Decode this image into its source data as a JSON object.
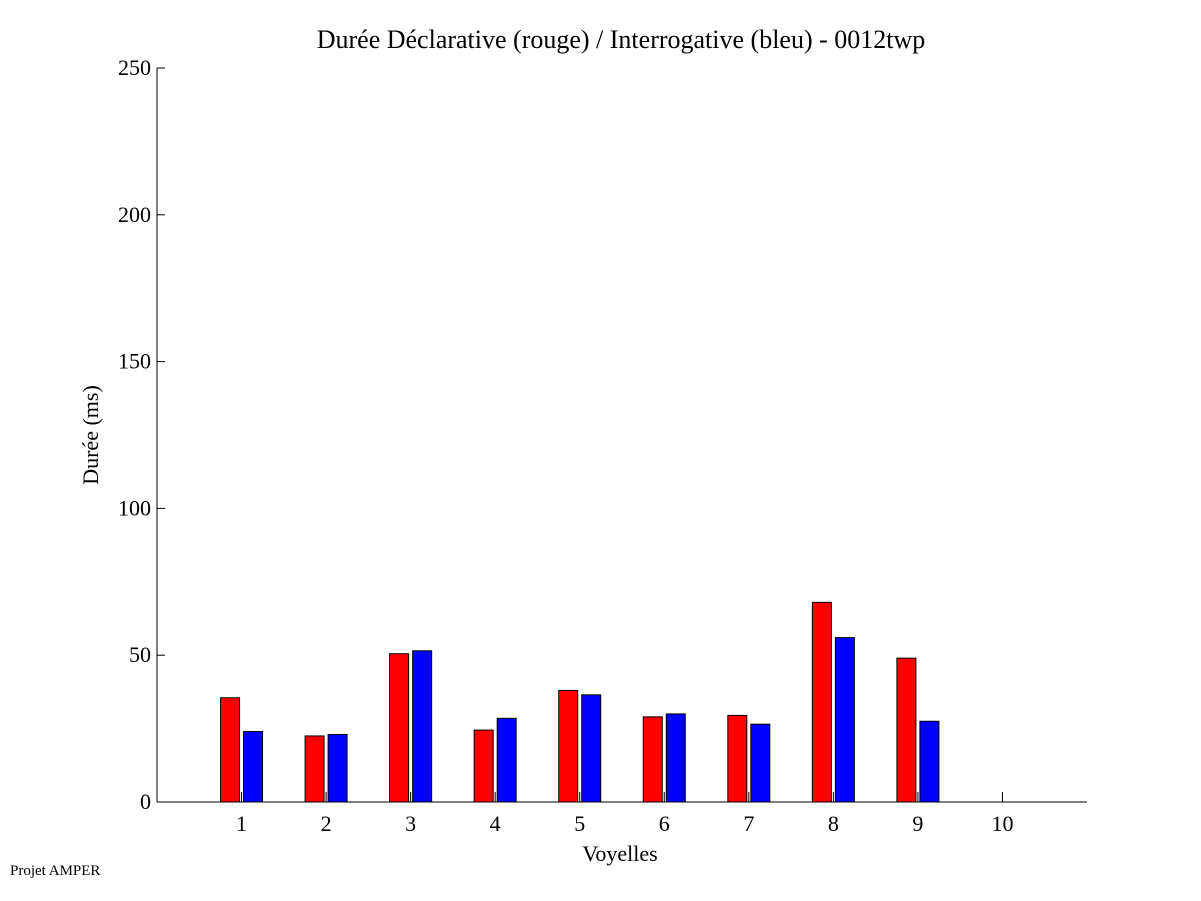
{
  "footer": {
    "label": "Projet AMPER"
  },
  "chart_data": {
    "type": "bar",
    "title": "Durée Déclarative (rouge) / Interrogative (bleu) - 0012twp",
    "xlabel": "Voyelles",
    "ylabel": "Durée (ms)",
    "ylim": [
      0,
      250
    ],
    "yticks": [
      0,
      50,
      100,
      150,
      200,
      250
    ],
    "xlim": [
      0,
      11
    ],
    "categories": [
      "1",
      "2",
      "3",
      "4",
      "5",
      "6",
      "7",
      "8",
      "9",
      "10"
    ],
    "series": [
      {
        "color": "#ff0000",
        "values": [
          35.5,
          22.5,
          50.5,
          24.5,
          38,
          29,
          29.5,
          68,
          49,
          null
        ]
      },
      {
        "color": "#0000ff",
        "values": [
          24,
          23,
          51.5,
          28.5,
          36.5,
          30,
          26.5,
          56,
          27.5,
          null
        ]
      }
    ],
    "grid": false,
    "legend": "none"
  }
}
